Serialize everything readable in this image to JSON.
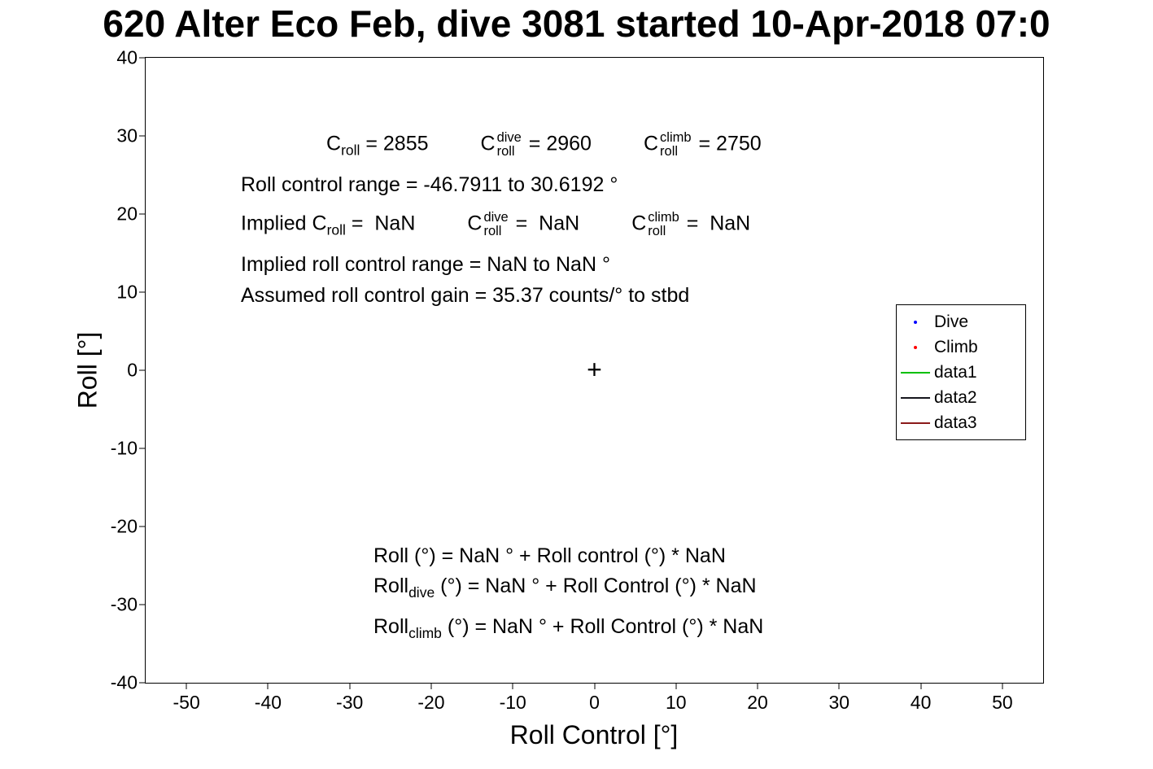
{
  "chart_data": {
    "type": "scatter",
    "title": "620 Alter Eco Feb, dive 3081 started 10-Apr-2018 07:0",
    "xlabel": "Roll Control [°]",
    "ylabel": "Roll [°]",
    "xlim": [
      -55,
      55
    ],
    "ylim": [
      -40,
      40
    ],
    "xticks": [
      "-50",
      "-40",
      "-30",
      "-20",
      "-10",
      "0",
      "10",
      "20",
      "30",
      "40",
      "50"
    ],
    "yticks": [
      "40",
      "30",
      "20",
      "10",
      "0",
      "-10",
      "-20",
      "-30",
      "-40"
    ],
    "grid": false,
    "legend_position": "right-middle-inside",
    "series": [
      {
        "name": "Dive",
        "marker": "dot",
        "color": "#0000ff",
        "points": []
      },
      {
        "name": "Climb",
        "marker": "dot",
        "color": "#ff0000",
        "points": []
      },
      {
        "name": "data1",
        "marker": "line",
        "color": "#00c000",
        "points": []
      },
      {
        "name": "data2",
        "marker": "line",
        "color": "#16161d",
        "points": []
      },
      {
        "name": "data3",
        "marker": "line",
        "color": "#8b1a1a",
        "points": []
      }
    ],
    "origin_marker": {
      "symbol": "+",
      "x": 0,
      "y": 0,
      "color": "#000000"
    },
    "annotations": [
      "C_roll = 2855      C_roll^dive = 2960      C_roll^climb = 2750",
      "Roll control range = -46.7911 to 30.6192 °",
      "Implied C_roll =  NaN      C_roll^dive =  NaN     C_roll^climb =  NaN",
      "Implied roll control range = NaN to NaN °",
      "Assumed roll control gain = 35.37 counts/° to stbd",
      "Roll (°) = NaN ° + Roll control (°) * NaN",
      "Roll_dive (°) = NaN ° + Roll Control (°) * NaN",
      "Roll_climb (°) = NaN ° + Roll Control (°) * NaN"
    ]
  },
  "ann": {
    "l1": {
      "c1": "C",
      "c1sub": "roll",
      "c1eq": " = 2855",
      "c2": "C",
      "c2sup": "dive",
      "c2sub": "roll",
      "c2eq": " = 2960",
      "c3": "C",
      "c3sup": "climb",
      "c3sub": "roll",
      "c3eq": " = 2750"
    },
    "l2": "Roll control range = -46.7911 to 30.6192 °",
    "l3": {
      "pre": "Implied C",
      "presub": "roll",
      "preeq": " =  NaN",
      "c2": "C",
      "c2sup": "dive",
      "c2sub": "roll",
      "c2eq": " =  NaN",
      "c3": "C",
      "c3sup": "climb",
      "c3sub": "roll",
      "c3eq": " =  NaN"
    },
    "l4": "Implied roll control range = NaN to NaN °",
    "l5": "Assumed roll control gain = 35.37 counts/° to stbd",
    "eq1": "Roll (°) = NaN ° + Roll control (°) * NaN",
    "eq2": {
      "pre": "Roll",
      "sub": "dive",
      "rest": " (°) = NaN ° + Roll Control (°) * NaN"
    },
    "eq3": {
      "pre": "Roll",
      "sub": "climb",
      "rest": " (°) = NaN ° + Roll Control (°) * NaN"
    }
  }
}
